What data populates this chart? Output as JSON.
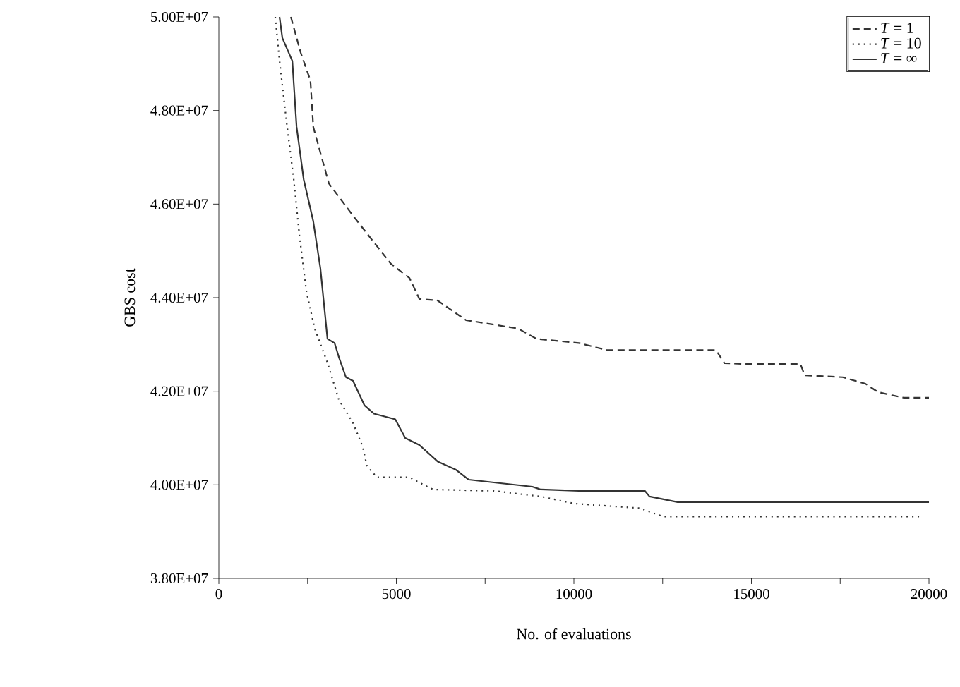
{
  "chart_data": {
    "type": "line",
    "xlabel": "No. of evaluations",
    "ylabel": "GBS cost",
    "xlim": [
      0,
      20000
    ],
    "ylim": [
      38000000,
      50000000
    ],
    "xticks": [
      0,
      {
        "value": 2500,
        "label": null
      },
      5000,
      {
        "value": 7500,
        "label": null
      },
      10000,
      {
        "value": 12500,
        "label": null
      },
      15000,
      {
        "value": 17500,
        "label": null
      },
      20000
    ],
    "yticks": [
      {
        "value": 38000000,
        "label": "3.80E+07"
      },
      {
        "value": 40000000,
        "label": "4.00E+07"
      },
      {
        "value": 42000000,
        "label": "4.20E+07"
      },
      {
        "value": 44000000,
        "label": "4.40E+07"
      },
      {
        "value": 46000000,
        "label": "4.60E+07"
      },
      {
        "value": 48000000,
        "label": "4.80E+07"
      },
      {
        "value": 50000000,
        "label": "5.00E+07"
      }
    ],
    "grid": false,
    "legend": "top right",
    "marker": "none",
    "series": [
      {
        "name": "*T* = 1",
        "color": "#333333",
        "line_style": "dashed",
        "x": [
          2030,
          2300,
          2580,
          2660,
          3100,
          3780,
          4850,
          5370,
          5650,
          6160,
          6960,
          8430,
          8950,
          10140,
          10930,
          14000,
          14240,
          14790,
          16380,
          16500,
          17570,
          18210,
          18570,
          19290,
          20000
        ],
        "values": [
          50000000,
          49250000,
          48640000,
          47650000,
          46440000,
          45750000,
          44720000,
          44420000,
          43970000,
          43940000,
          43520000,
          43340000,
          43120000,
          43030000,
          42880000,
          42880000,
          42600000,
          42580000,
          42580000,
          42340000,
          42300000,
          42160000,
          41980000,
          41860000,
          41860000
        ]
      },
      {
        "name": "*T* = 10",
        "color": "#333333",
        "line_style": "dotted",
        "x": [
          1590,
          1710,
          1910,
          2110,
          2270,
          2470,
          2700,
          3060,
          3380,
          3780,
          4050,
          4170,
          4450,
          5370,
          5770,
          6040,
          7750,
          9070,
          10000,
          11850,
          12520,
          19800
        ],
        "values": [
          50000000,
          49060000,
          47740000,
          46530000,
          45330000,
          44120000,
          43340000,
          42610000,
          41820000,
          41320000,
          40820000,
          40410000,
          40160000,
          40160000,
          40000000,
          39900000,
          39870000,
          39750000,
          39600000,
          39500000,
          39320000,
          39320000
        ]
      },
      {
        "name": "*T* = ∞",
        "color": "#333333",
        "line_style": "solid",
        "x": [
          1710,
          1790,
          2070,
          2190,
          2390,
          2660,
          2860,
          3060,
          3260,
          3380,
          3580,
          3780,
          4100,
          4370,
          4970,
          5250,
          5650,
          6160,
          6680,
          7040,
          7750,
          8830,
          9070,
          10140,
          12000,
          12130,
          12920,
          20000
        ],
        "values": [
          50000000,
          49550000,
          49060000,
          47650000,
          46530000,
          45630000,
          44630000,
          43120000,
          43030000,
          42730000,
          42300000,
          42220000,
          41700000,
          41520000,
          41400000,
          41000000,
          40850000,
          40500000,
          40320000,
          40110000,
          40050000,
          39960000,
          39900000,
          39870000,
          39870000,
          39750000,
          39630000,
          39630000
        ]
      }
    ]
  }
}
